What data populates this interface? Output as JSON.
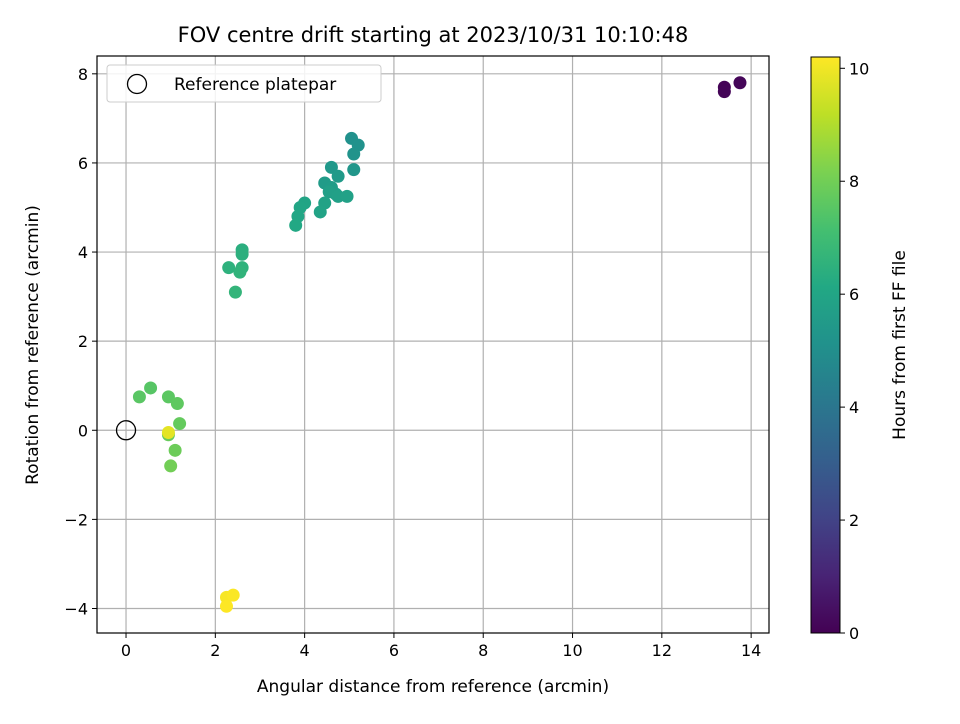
{
  "chart_data": {
    "type": "scatter",
    "title": "FOV centre drift starting at 2023/10/31 10:10:48",
    "xlabel": "Angular distance from reference (arcmin)",
    "ylabel": "Rotation from reference (arcmin)",
    "xlim": [
      -0.65,
      14.4
    ],
    "ylim": [
      -4.55,
      8.4
    ],
    "xticks": [
      0,
      2,
      4,
      6,
      8,
      10,
      12,
      14
    ],
    "yticks": [
      -4,
      -2,
      0,
      2,
      4,
      6,
      8
    ],
    "grid": true,
    "legend": {
      "placement": "top-left",
      "entries": [
        "Reference platepar"
      ]
    },
    "reference_point": {
      "x": 0,
      "y": 0,
      "label": "Reference platepar"
    },
    "colorbar": {
      "label": "Hours from first FF file",
      "range": [
        0,
        10.2
      ],
      "ticks": [
        0,
        2,
        4,
        6,
        8,
        10
      ],
      "colormap": "viridis"
    },
    "points": [
      {
        "x": 13.4,
        "y": 7.7,
        "c": 0.05
      },
      {
        "x": 13.4,
        "y": 7.6,
        "c": 0.1
      },
      {
        "x": 13.75,
        "y": 7.8,
        "c": 0.15
      },
      {
        "x": 5.05,
        "y": 6.55,
        "c": 5.1
      },
      {
        "x": 5.2,
        "y": 6.4,
        "c": 5.15
      },
      {
        "x": 5.1,
        "y": 6.2,
        "c": 5.2
      },
      {
        "x": 5.1,
        "y": 5.85,
        "c": 5.3
      },
      {
        "x": 4.6,
        "y": 5.9,
        "c": 5.4
      },
      {
        "x": 4.75,
        "y": 5.7,
        "c": 5.5
      },
      {
        "x": 4.45,
        "y": 5.55,
        "c": 5.55
      },
      {
        "x": 4.6,
        "y": 5.45,
        "c": 5.6
      },
      {
        "x": 4.7,
        "y": 5.3,
        "c": 5.65
      },
      {
        "x": 4.55,
        "y": 5.35,
        "c": 5.7
      },
      {
        "x": 4.75,
        "y": 5.25,
        "c": 5.75
      },
      {
        "x": 4.95,
        "y": 5.25,
        "c": 5.8
      },
      {
        "x": 4.45,
        "y": 5.1,
        "c": 5.85
      },
      {
        "x": 4.35,
        "y": 4.9,
        "c": 5.9
      },
      {
        "x": 4.0,
        "y": 5.1,
        "c": 5.95
      },
      {
        "x": 3.9,
        "y": 5.0,
        "c": 6.0
      },
      {
        "x": 3.85,
        "y": 4.8,
        "c": 6.05
      },
      {
        "x": 3.8,
        "y": 4.6,
        "c": 6.1
      },
      {
        "x": 2.6,
        "y": 4.05,
        "c": 6.4
      },
      {
        "x": 2.6,
        "y": 3.95,
        "c": 6.45
      },
      {
        "x": 2.3,
        "y": 3.65,
        "c": 6.5
      },
      {
        "x": 2.6,
        "y": 3.65,
        "c": 6.55
      },
      {
        "x": 2.55,
        "y": 3.55,
        "c": 6.6
      },
      {
        "x": 2.45,
        "y": 3.1,
        "c": 6.65
      },
      {
        "x": 0.55,
        "y": 0.95,
        "c": 7.5
      },
      {
        "x": 0.3,
        "y": 0.75,
        "c": 7.55
      },
      {
        "x": 0.95,
        "y": 0.75,
        "c": 7.6
      },
      {
        "x": 1.15,
        "y": 0.6,
        "c": 7.65
      },
      {
        "x": 1.2,
        "y": 0.15,
        "c": 7.75
      },
      {
        "x": 0.95,
        "y": -0.1,
        "c": 7.8
      },
      {
        "x": 1.1,
        "y": -0.45,
        "c": 7.9
      },
      {
        "x": 1.0,
        "y": -0.8,
        "c": 8.0
      },
      {
        "x": 0.95,
        "y": -0.05,
        "c": 9.8
      },
      {
        "x": 2.25,
        "y": -3.75,
        "c": 10.1
      },
      {
        "x": 2.4,
        "y": -3.7,
        "c": 10.15
      },
      {
        "x": 2.25,
        "y": -3.95,
        "c": 10.2
      }
    ]
  }
}
